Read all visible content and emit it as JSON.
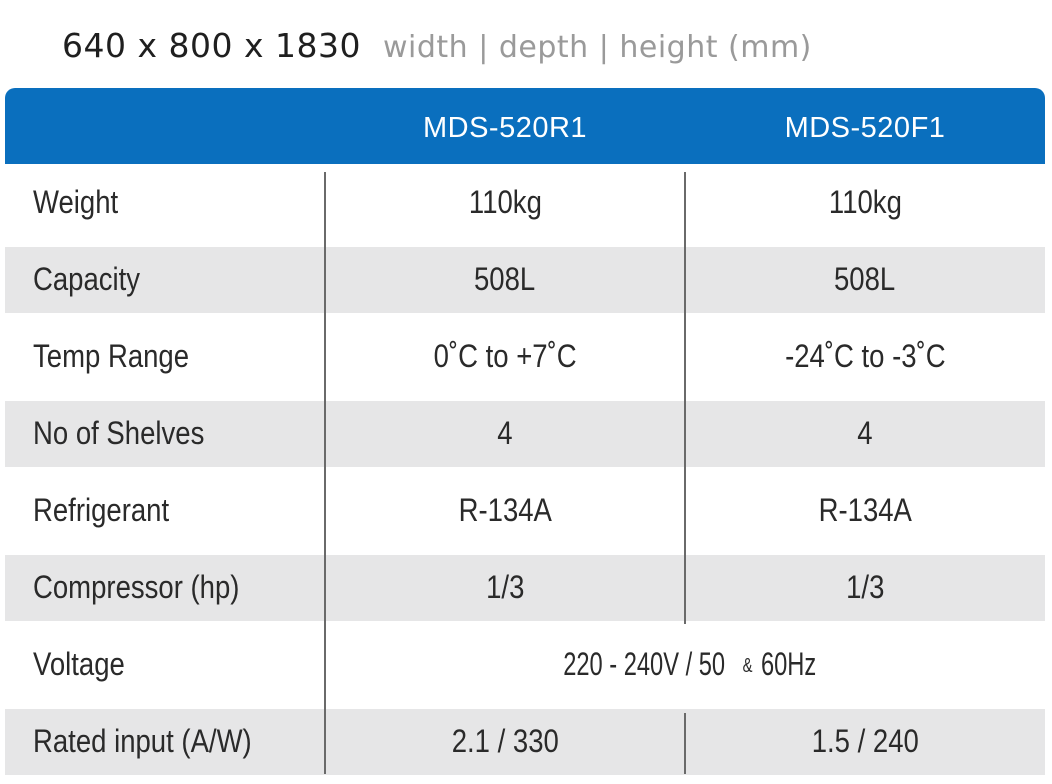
{
  "dimensions": {
    "value": "640 x 800 x 1830",
    "caption": "width | depth | height (mm)"
  },
  "models": [
    "MDS-520R1",
    "MDS-520F1"
  ],
  "rows": [
    {
      "label": "Weight",
      "values": [
        "110kg",
        "110kg"
      ]
    },
    {
      "label": "Capacity",
      "values": [
        "508L",
        "508L"
      ]
    },
    {
      "label": "Temp Range",
      "values": [
        "0˚C to +7˚C",
        "-24˚C to -3˚C"
      ]
    },
    {
      "label": "No of Shelves",
      "values": [
        "4",
        "4"
      ]
    },
    {
      "label": "Refrigerant",
      "values": [
        "R-134A",
        "R-134A"
      ]
    },
    {
      "label": "Compressor (hp)",
      "values": [
        "1/3",
        "1/3"
      ]
    },
    {
      "label": "Voltage",
      "combined": {
        "before": "220 - 240V / 50",
        "amp": "&",
        "after": "60Hz"
      }
    },
    {
      "label": "Rated input (A/W)",
      "values": [
        "2.1 / 330",
        "1.5 / 240"
      ]
    }
  ],
  "colors": {
    "header": "#0a6fbe",
    "shaded_row": "#e6e6e7",
    "caption": "#9a9a9a"
  }
}
